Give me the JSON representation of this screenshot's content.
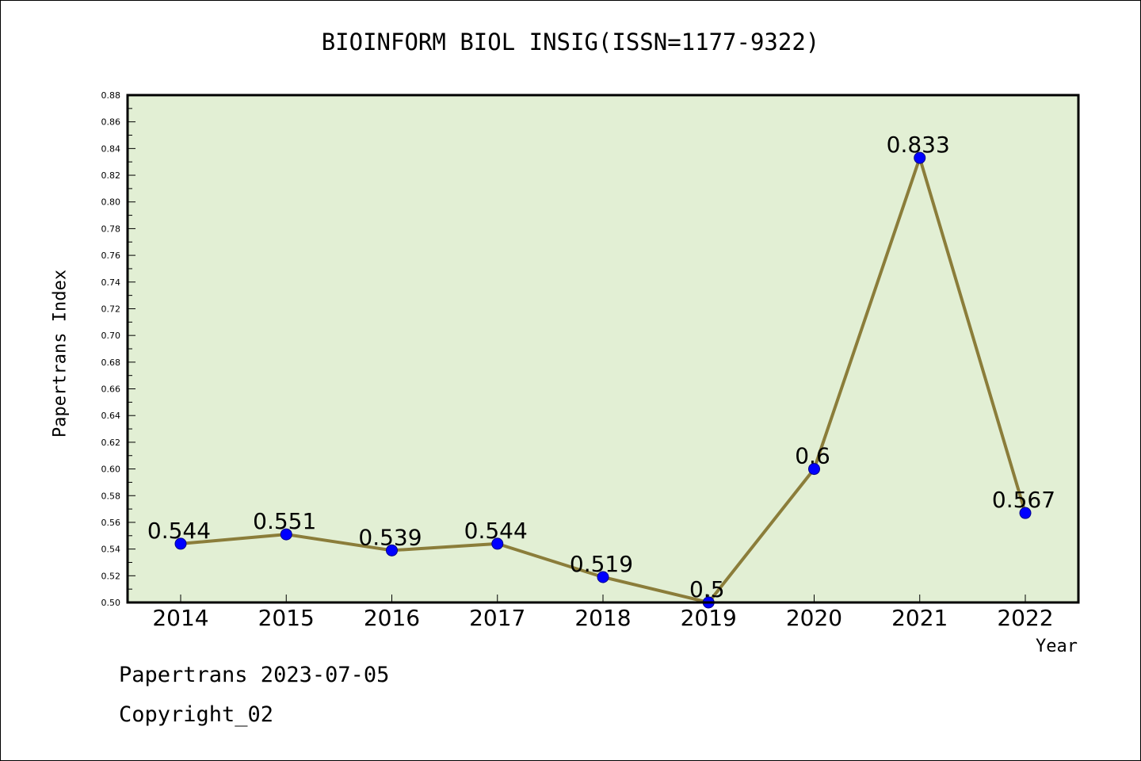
{
  "chart_data": {
    "type": "line",
    "title": "BIOINFORM BIOL INSIG(ISSN=1177-9322)",
    "xlabel": "Year",
    "ylabel": "Papertrans Index",
    "categories": [
      "2014",
      "2015",
      "2016",
      "2017",
      "2018",
      "2019",
      "2020",
      "2021",
      "2022"
    ],
    "series": [
      {
        "values": [
          0.544,
          0.551,
          0.539,
          0.544,
          0.519,
          0.5,
          0.6,
          0.833,
          0.567
        ],
        "labels": [
          "0.544",
          "0.551",
          "0.539",
          "0.544",
          "0.519",
          "0.5",
          "0.6",
          "0.833",
          "0.567"
        ],
        "line_color": "#8b7d3a",
        "marker_color": "#0000ff"
      }
    ],
    "ylim": [
      0.5,
      0.88
    ],
    "yticks": [
      "0.50",
      "0.52",
      "0.54",
      "0.56",
      "0.58",
      "0.60",
      "0.62",
      "0.64",
      "0.66",
      "0.68",
      "0.70",
      "0.72",
      "0.74",
      "0.76",
      "0.78",
      "0.80",
      "0.82",
      "0.84",
      "0.86",
      "0.88"
    ],
    "grid": false,
    "plot_background": "#e2efd4"
  },
  "footer": {
    "line1": "Papertrans 2023-07-05",
    "line2": "Copyright_02"
  }
}
